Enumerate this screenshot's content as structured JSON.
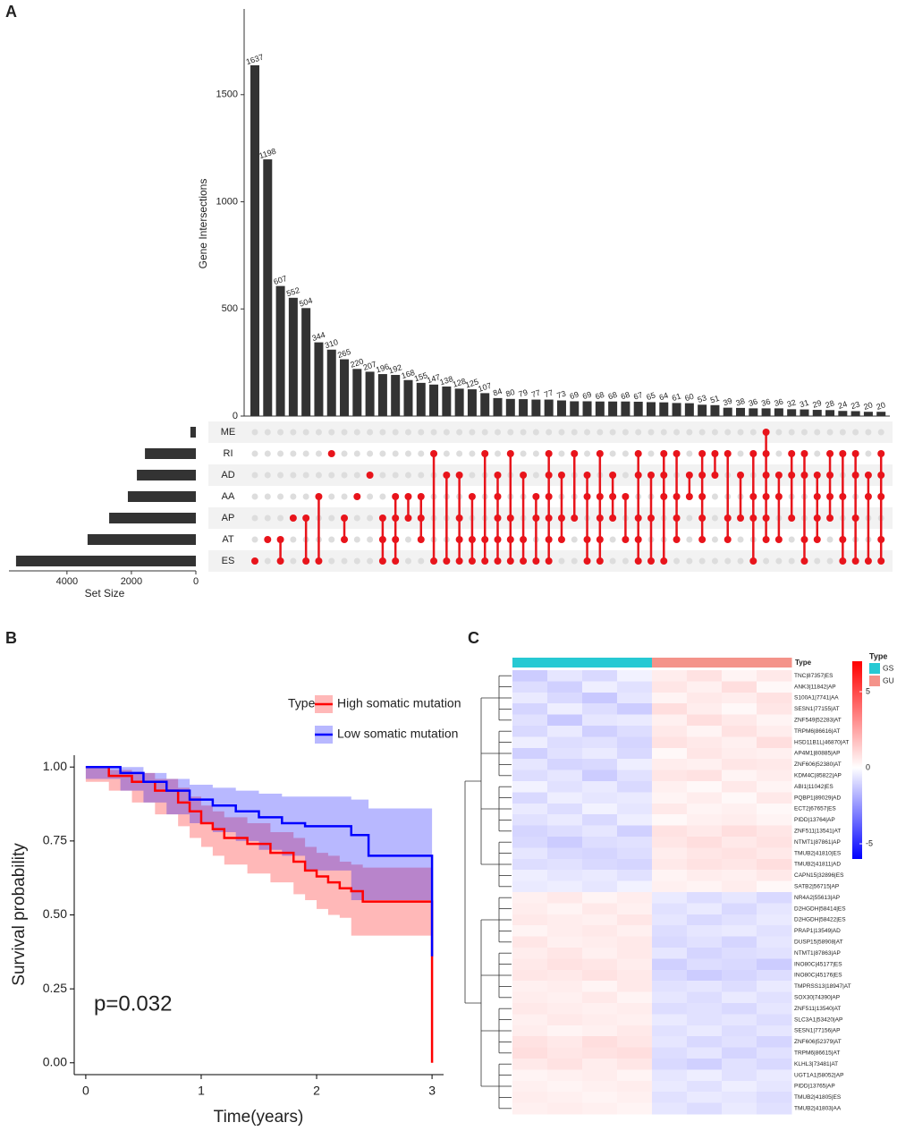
{
  "chart_data": [
    {
      "type": "upset",
      "panel_label": "A",
      "ylabel": "Gene Intersections",
      "ylim": [
        0,
        1900
      ],
      "yticks": [
        0,
        500,
        1000,
        1500
      ],
      "values": [
        1637,
        1198,
        607,
        552,
        504,
        344,
        310,
        265,
        220,
        207,
        196,
        192,
        168,
        155,
        147,
        138,
        128,
        125,
        107,
        84,
        80,
        79,
        77,
        77,
        73,
        69,
        69,
        68,
        68,
        68,
        67,
        65,
        64,
        61,
        60,
        53,
        51,
        39,
        38,
        36,
        36,
        36,
        32,
        31,
        29,
        28,
        24,
        23,
        20,
        20
      ],
      "bar_color": "#333333",
      "dot_color": "#e8141b",
      "sets": [
        "ME",
        "RI",
        "AD",
        "AA",
        "AP",
        "AT",
        "ES"
      ],
      "set_sizes": [
        170,
        1580,
        1830,
        2110,
        2690,
        3360,
        5580
      ],
      "set_size_label": "Set Size",
      "set_size_lim": [
        0,
        5800
      ],
      "set_size_ticks": [
        0,
        2000,
        4000
      ],
      "memberships": [
        [
          6
        ],
        [
          5
        ],
        [
          5,
          6
        ],
        [
          4
        ],
        [
          4,
          6
        ],
        [
          3,
          6
        ],
        [
          1
        ],
        [
          4,
          5
        ],
        [
          3
        ],
        [
          2
        ],
        [
          4,
          5,
          6
        ],
        [
          3,
          4,
          5,
          6
        ],
        [
          3,
          4
        ],
        [
          3,
          4,
          5
        ],
        [
          1,
          6
        ],
        [
          2,
          6
        ],
        [
          2,
          4,
          5,
          6
        ],
        [
          3,
          5,
          6
        ],
        [
          1,
          5,
          6
        ],
        [
          2,
          3,
          4,
          5,
          6
        ],
        [
          1,
          4,
          5,
          6
        ],
        [
          2,
          5,
          6
        ],
        [
          3,
          4,
          6
        ],
        [
          1,
          2,
          3,
          4,
          5,
          6
        ],
        [
          2,
          4,
          5
        ],
        [
          1,
          4
        ],
        [
          2,
          3,
          5,
          6
        ],
        [
          1,
          3,
          4,
          5,
          6
        ],
        [
          2,
          3,
          4
        ],
        [
          3,
          5
        ],
        [
          1,
          2,
          4,
          5,
          6
        ],
        [
          2,
          4,
          6
        ],
        [
          1,
          2,
          3,
          6
        ],
        [
          1,
          3,
          4,
          5
        ],
        [
          2,
          3
        ],
        [
          1,
          2,
          3,
          4,
          5
        ],
        [
          1,
          2
        ],
        [
          1,
          4,
          5
        ],
        [
          2,
          4
        ],
        [
          1,
          3,
          4,
          6
        ],
        [
          0,
          1,
          2,
          3,
          4,
          5
        ],
        [
          2,
          3,
          5
        ],
        [
          1,
          2,
          4
        ],
        [
          1,
          2,
          5,
          6
        ],
        [
          2,
          3,
          4,
          5
        ],
        [
          1,
          2,
          3,
          4
        ],
        [
          1,
          3,
          5,
          6
        ],
        [
          1,
          2,
          4,
          6
        ],
        [
          2,
          3,
          6
        ],
        [
          1,
          2,
          3,
          5,
          6
        ]
      ]
    },
    {
      "type": "km",
      "panel_label": "B",
      "xlabel": "Time(years)",
      "ylabel": "Survival probability",
      "xlim": [
        -0.1,
        3.1
      ],
      "xticks": [
        0,
        1,
        2,
        3
      ],
      "ylim": [
        -0.04,
        1.04
      ],
      "yticks": [
        {
          "value": 0,
          "label": "0.00"
        },
        {
          "value": 0.25,
          "label": "0.25"
        },
        {
          "value": 0.5,
          "label": "0.50"
        },
        {
          "value": 0.75,
          "label": "0.75"
        },
        {
          "value": 1,
          "label": "1.00"
        }
      ],
      "legend_title": "Type",
      "annotation": "p=0.032",
      "series": [
        {
          "name": "High somatic mutation",
          "color": "#ff0000",
          "x": [
            0,
            0.2,
            0.4,
            0.6,
            0.8,
            0.9,
            1.0,
            1.1,
            1.2,
            1.4,
            1.6,
            1.8,
            1.9,
            2.0,
            2.1,
            2.2,
            2.3,
            2.4,
            3.0
          ],
          "values": [
            1,
            0.97,
            0.95,
            0.92,
            0.88,
            0.85,
            0.81,
            0.79,
            0.76,
            0.74,
            0.71,
            0.68,
            0.65,
            0.63,
            0.61,
            0.59,
            0.58,
            0.545,
            0
          ],
          "lower": [
            1,
            0.95,
            0.92,
            0.88,
            0.84,
            0.8,
            0.76,
            0.73,
            0.7,
            0.67,
            0.64,
            0.61,
            0.57,
            0.55,
            0.52,
            0.5,
            0.49,
            0.43,
            0.43
          ],
          "upper": [
            1,
            0.99,
            0.98,
            0.96,
            0.93,
            0.9,
            0.87,
            0.85,
            0.83,
            0.81,
            0.78,
            0.76,
            0.73,
            0.71,
            0.7,
            0.68,
            0.67,
            0.66,
            0.66
          ]
        },
        {
          "name": "Low somatic mutation",
          "color": "#0000ff",
          "x": [
            0,
            0.3,
            0.5,
            0.7,
            0.9,
            1.1,
            1.3,
            1.5,
            1.7,
            1.9,
            2.3,
            2.45,
            3.0
          ],
          "values": [
            1,
            0.98,
            0.95,
            0.92,
            0.89,
            0.87,
            0.85,
            0.83,
            0.81,
            0.8,
            0.77,
            0.7,
            0.36
          ],
          "lower": [
            1,
            0.96,
            0.92,
            0.88,
            0.84,
            0.81,
            0.78,
            0.75,
            0.72,
            0.7,
            0.65,
            0.55,
            0.55
          ],
          "upper": [
            1,
            1,
            0.98,
            0.96,
            0.94,
            0.93,
            0.92,
            0.91,
            0.9,
            0.9,
            0.89,
            0.86,
            0.86
          ]
        }
      ]
    },
    {
      "type": "heatmap",
      "panel_label": "C",
      "annotation_label": "Type",
      "annotation_legend": {
        "title": "Type",
        "names": [
          "GS",
          "GU"
        ],
        "colors": [
          "#27c9d3",
          "#f4938a"
        ]
      },
      "column_groups": [
        0,
        0,
        0,
        0,
        1,
        1,
        1,
        1
      ],
      "colorbar": {
        "lim": [
          -6,
          7
        ],
        "ticks": [
          -5,
          0,
          5
        ],
        "colors": [
          "#0000ff",
          "#ffffff",
          "#ff0000"
        ]
      },
      "rows": [
        "TNC|87357|ES",
        "ANK3|11842|AP",
        "S100A1|7741|AA",
        "SESN1|77155|AT",
        "ZNF549|52283|AT",
        "TRPM6|86616|AT",
        "HSD11B1L|46870|AT",
        "AP4M1|80885|AP",
        "ZNF606|52380|AT",
        "KDM4C|85822|AP",
        "ABI1|11042|ES",
        "PQBP1|89029|AD",
        "ECT2|67657|ES",
        "PIDD|13764|AP",
        "ZNF511|13541|AT",
        "NTMT1|87861|AP",
        "TMUB2|41810|ES",
        "TMUB2|41811|AD",
        "CAPN15|32896|ES",
        "SATB2|56715|AP",
        "NR4A2|55613|AP",
        "D2HGDH|58414|ES",
        "D2HGDH|58422|ES",
        "PRAP1|13549|AD",
        "DUSP15|58908|AT",
        "NTMT1|87863|AP",
        "INO80C|45177|ES",
        "INO80C|45176|ES",
        "TMPRSS13|18947|AT",
        "SOX30|74390|AP",
        "ZNF511|13540|AT",
        "SLC3A1|53420|AP",
        "SESN1|77156|AP",
        "ZNF606|52379|AT",
        "TRPM6|86615|AT",
        "KLHL3|73481|AT",
        "UGT1A1|58052|AP",
        "PIDD|13765|AP",
        "TMUB2|41805|ES",
        "TMUB2|41803|AA"
      ],
      "values": [
        [
          -1.2,
          -0.6,
          -0.9,
          -0.3,
          0.5,
          0.8,
          0.3,
          0.6
        ],
        [
          -0.8,
          -1.1,
          -0.4,
          -0.7,
          0.7,
          0.4,
          0.9,
          0.2
        ],
        [
          -0.5,
          -0.9,
          -1.3,
          -0.6,
          0.3,
          0.6,
          0.5,
          0.8
        ],
        [
          -1.0,
          -0.4,
          -0.8,
          -1.2,
          0.9,
          0.5,
          0.2,
          0.7
        ],
        [
          -0.7,
          -1.3,
          -0.6,
          -0.5,
          0.4,
          0.9,
          0.6,
          0.3
        ],
        [
          -0.9,
          -0.5,
          -1.1,
          -0.8,
          0.6,
          0.3,
          0.8,
          0.5
        ],
        [
          -0.4,
          -0.8,
          -0.7,
          -1.0,
          0.8,
          0.6,
          0.4,
          0.9
        ],
        [
          -1.1,
          -0.7,
          -0.5,
          -0.9,
          0.2,
          0.7,
          0.5,
          0.4
        ],
        [
          -0.6,
          -1.0,
          -0.9,
          -0.4,
          0.5,
          0.4,
          0.7,
          0.6
        ],
        [
          -0.8,
          -0.6,
          -1.2,
          -0.7,
          0.7,
          0.8,
          0.3,
          0.5
        ],
        [
          -0.3,
          -0.7,
          -0.5,
          -0.9,
          0.4,
          0.2,
          0.6,
          0.3
        ],
        [
          -0.9,
          -0.4,
          -0.6,
          -0.5,
          0.3,
          0.5,
          0.2,
          0.6
        ],
        [
          -0.5,
          -0.8,
          -0.3,
          -0.6,
          0.6,
          0.3,
          0.4,
          0.2
        ],
        [
          -0.7,
          -0.5,
          -0.9,
          -0.4,
          0.2,
          0.4,
          0.5,
          0.3
        ],
        [
          -1.0,
          -0.8,
          -0.6,
          -1.1,
          0.8,
          0.6,
          0.9,
          0.7
        ],
        [
          -0.9,
          -1.2,
          -0.8,
          -0.7,
          0.7,
          0.9,
          0.6,
          0.8
        ],
        [
          -0.6,
          -0.9,
          -1.0,
          -0.8,
          0.5,
          0.7,
          0.8,
          0.6
        ],
        [
          -0.8,
          -0.7,
          -0.9,
          -1.0,
          0.6,
          0.8,
          0.7,
          0.9
        ],
        [
          -0.4,
          -0.6,
          -0.5,
          -0.7,
          0.3,
          0.5,
          0.4,
          0.6
        ],
        [
          -0.5,
          -0.4,
          -0.6,
          -0.3,
          0.4,
          0.3,
          0.5,
          0.2
        ],
        [
          0.4,
          0.6,
          0.3,
          0.5,
          -0.5,
          -0.8,
          -0.6,
          -0.9
        ],
        [
          0.5,
          0.3,
          0.6,
          0.4,
          -0.7,
          -0.5,
          -0.9,
          -0.6
        ],
        [
          0.6,
          0.5,
          0.4,
          0.7,
          -0.6,
          -0.9,
          -0.7,
          -0.5
        ],
        [
          0.3,
          0.5,
          0.6,
          0.4,
          -0.8,
          -0.6,
          -0.5,
          -0.7
        ],
        [
          0.7,
          0.4,
          0.5,
          0.6,
          -0.9,
          -0.7,
          -1.0,
          -0.6
        ],
        [
          0.5,
          0.7,
          0.4,
          0.6,
          -0.6,
          -1.0,
          -0.8,
          -0.7
        ],
        [
          0.6,
          0.8,
          0.7,
          0.5,
          -1.1,
          -0.8,
          -0.9,
          -1.2
        ],
        [
          0.7,
          0.6,
          0.8,
          0.6,
          -0.9,
          -1.2,
          -1.0,
          -0.8
        ],
        [
          0.4,
          0.5,
          0.3,
          0.6,
          -0.7,
          -0.6,
          -0.8,
          -0.5
        ],
        [
          0.5,
          0.4,
          0.6,
          0.3,
          -0.6,
          -0.8,
          -0.5,
          -0.7
        ],
        [
          0.6,
          0.5,
          0.4,
          0.5,
          -0.8,
          -0.7,
          -0.9,
          -0.6
        ],
        [
          0.4,
          0.6,
          0.5,
          0.4,
          -0.5,
          -0.7,
          -0.6,
          -0.8
        ],
        [
          0.5,
          0.3,
          0.4,
          0.6,
          -0.7,
          -0.5,
          -0.8,
          -0.6
        ],
        [
          0.8,
          0.6,
          0.9,
          0.7,
          -0.6,
          -0.9,
          -0.7,
          -1.0
        ],
        [
          0.9,
          0.7,
          0.8,
          0.9,
          -0.8,
          -0.6,
          -1.0,
          -0.7
        ],
        [
          0.6,
          0.8,
          0.5,
          0.7,
          -0.9,
          -1.1,
          -0.7,
          -0.9
        ],
        [
          0.3,
          0.4,
          0.5,
          0.3,
          -0.6,
          -0.4,
          -0.7,
          -0.5
        ],
        [
          0.4,
          0.3,
          0.4,
          0.5,
          -0.5,
          -0.7,
          -0.4,
          -0.6
        ],
        [
          0.5,
          0.4,
          0.3,
          0.4,
          -0.7,
          -0.5,
          -0.6,
          -0.8
        ],
        [
          0.4,
          0.5,
          0.4,
          0.3,
          -0.6,
          -0.8,
          -0.5,
          -0.7
        ]
      ]
    }
  ]
}
